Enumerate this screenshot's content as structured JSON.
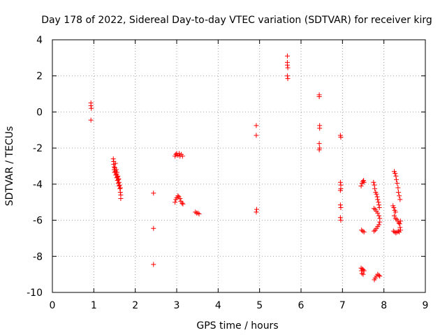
{
  "chart_data": {
    "type": "scatter",
    "title": "Day 178 of 2022, Sidereal Day-to-day VTEC variation (SDTVAR) for receiver kirg",
    "xlabel": "GPS time / hours",
    "ylabel": "SDTVAR / TECUs",
    "xlim": [
      0,
      9
    ],
    "ylim": [
      -10,
      4
    ],
    "xticks": [
      0,
      1,
      2,
      3,
      4,
      5,
      6,
      7,
      8,
      9
    ],
    "yticks": [
      4,
      2,
      0,
      -2,
      -4,
      -6,
      -8,
      -10
    ],
    "xtick_labels": [
      "0",
      "1",
      "2",
      "3",
      "4",
      "5",
      "6",
      "7",
      "8",
      "9"
    ],
    "ytick_labels": [
      "4",
      "2",
      "0",
      "-2",
      "-4",
      "-6",
      "-8",
      "-10"
    ],
    "grid": true,
    "marker": "+",
    "color": "#ff0000",
    "series": [
      {
        "name": "SDTVAR",
        "points": [
          [
            0.93,
            0.5
          ],
          [
            0.93,
            0.35
          ],
          [
            0.94,
            0.2
          ],
          [
            0.93,
            -0.45
          ],
          [
            1.47,
            -2.6
          ],
          [
            1.48,
            -2.75
          ],
          [
            1.48,
            -2.9
          ],
          [
            1.49,
            -3.05
          ],
          [
            1.49,
            -3.2
          ],
          [
            1.5,
            -3.35
          ],
          [
            1.51,
            -3.1
          ],
          [
            1.52,
            -2.85
          ],
          [
            1.52,
            -3.3
          ],
          [
            1.53,
            -3.5
          ],
          [
            1.54,
            -3.2
          ],
          [
            1.55,
            -3.45
          ],
          [
            1.55,
            -3.65
          ],
          [
            1.56,
            -3.35
          ],
          [
            1.57,
            -3.6
          ],
          [
            1.57,
            -3.8
          ],
          [
            1.58,
            -3.55
          ],
          [
            1.59,
            -3.75
          ],
          [
            1.59,
            -3.95
          ],
          [
            1.6,
            -3.7
          ],
          [
            1.61,
            -3.9
          ],
          [
            1.61,
            -4.1
          ],
          [
            1.62,
            -4.05
          ],
          [
            1.63,
            -4.25
          ],
          [
            1.64,
            -4.45
          ],
          [
            1.64,
            -4.2
          ],
          [
            1.65,
            -4.6
          ],
          [
            1.65,
            -4.8
          ],
          [
            2.44,
            -4.5
          ],
          [
            2.44,
            -6.45
          ],
          [
            2.44,
            -8.45
          ],
          [
            2.96,
            -2.45
          ],
          [
            2.98,
            -2.35
          ],
          [
            3.0,
            -2.3
          ],
          [
            3.03,
            -2.4
          ],
          [
            3.06,
            -2.3
          ],
          [
            3.08,
            -2.45
          ],
          [
            3.11,
            -2.35
          ],
          [
            3.14,
            -2.45
          ],
          [
            2.96,
            -5.0
          ],
          [
            2.98,
            -4.85
          ],
          [
            3.0,
            -4.75
          ],
          [
            3.03,
            -4.65
          ],
          [
            3.05,
            -4.7
          ],
          [
            3.08,
            -4.8
          ],
          [
            3.1,
            -4.95
          ],
          [
            3.13,
            -5.05
          ],
          [
            3.15,
            -5.1
          ],
          [
            3.45,
            -5.55
          ],
          [
            3.48,
            -5.6
          ],
          [
            3.51,
            -5.6
          ],
          [
            3.54,
            -5.65
          ],
          [
            4.92,
            -0.75
          ],
          [
            4.92,
            -1.3
          ],
          [
            4.93,
            -5.4
          ],
          [
            4.92,
            -5.55
          ],
          [
            5.67,
            3.1
          ],
          [
            5.67,
            2.75
          ],
          [
            5.67,
            2.6
          ],
          [
            5.68,
            2.45
          ],
          [
            5.67,
            2.0
          ],
          [
            5.68,
            1.85
          ],
          [
            6.44,
            0.95
          ],
          [
            6.44,
            0.85
          ],
          [
            6.45,
            -0.75
          ],
          [
            6.45,
            -0.9
          ],
          [
            6.44,
            -1.75
          ],
          [
            6.45,
            -2.0
          ],
          [
            6.44,
            -2.1
          ],
          [
            6.95,
            -1.3
          ],
          [
            6.96,
            -1.4
          ],
          [
            6.95,
            -3.9
          ],
          [
            6.96,
            -4.05
          ],
          [
            6.96,
            -4.25
          ],
          [
            6.95,
            -4.35
          ],
          [
            6.95,
            -5.15
          ],
          [
            6.96,
            -5.3
          ],
          [
            6.95,
            -5.85
          ],
          [
            6.96,
            -6.0
          ],
          [
            7.45,
            -4.1
          ],
          [
            7.47,
            -3.95
          ],
          [
            7.49,
            -3.85
          ],
          [
            7.51,
            -3.8
          ],
          [
            7.52,
            -3.9
          ],
          [
            7.46,
            -6.55
          ],
          [
            7.49,
            -6.6
          ],
          [
            7.52,
            -6.65
          ],
          [
            7.45,
            -8.65
          ],
          [
            7.46,
            -8.8
          ],
          [
            7.48,
            -8.7
          ],
          [
            7.47,
            -8.95
          ],
          [
            7.5,
            -8.75
          ],
          [
            7.5,
            -9.0
          ],
          [
            7.52,
            -8.8
          ],
          [
            7.75,
            -3.9
          ],
          [
            7.77,
            -4.05
          ],
          [
            7.78,
            -4.25
          ],
          [
            7.8,
            -4.45
          ],
          [
            7.82,
            -4.55
          ],
          [
            7.84,
            -4.7
          ],
          [
            7.85,
            -4.85
          ],
          [
            7.87,
            -5.0
          ],
          [
            7.88,
            -5.15
          ],
          [
            7.89,
            -5.3
          ],
          [
            7.76,
            -5.35
          ],
          [
            7.79,
            -5.4
          ],
          [
            7.82,
            -5.5
          ],
          [
            7.85,
            -5.6
          ],
          [
            7.88,
            -5.75
          ],
          [
            7.9,
            -5.9
          ],
          [
            7.9,
            -6.1
          ],
          [
            7.88,
            -6.25
          ],
          [
            7.85,
            -6.35
          ],
          [
            7.82,
            -6.45
          ],
          [
            7.79,
            -6.55
          ],
          [
            7.76,
            -6.6
          ],
          [
            7.77,
            -9.3
          ],
          [
            7.79,
            -9.2
          ],
          [
            7.82,
            -9.1
          ],
          [
            7.85,
            -9.0
          ],
          [
            7.88,
            -9.05
          ],
          [
            7.9,
            -9.1
          ],
          [
            8.25,
            -3.3
          ],
          [
            8.27,
            -3.4
          ],
          [
            8.29,
            -3.55
          ],
          [
            8.3,
            -3.75
          ],
          [
            8.32,
            -3.95
          ],
          [
            8.34,
            -4.2
          ],
          [
            8.35,
            -4.45
          ],
          [
            8.37,
            -4.65
          ],
          [
            8.39,
            -4.85
          ],
          [
            8.22,
            -5.2
          ],
          [
            8.24,
            -5.3
          ],
          [
            8.26,
            -5.45
          ],
          [
            8.28,
            -5.55
          ],
          [
            8.25,
            -5.75
          ],
          [
            8.28,
            -5.9
          ],
          [
            8.31,
            -5.95
          ],
          [
            8.34,
            -6.05
          ],
          [
            8.36,
            -6.15
          ],
          [
            8.38,
            -6.2
          ],
          [
            8.4,
            -6.05
          ],
          [
            8.39,
            -6.4
          ],
          [
            8.23,
            -6.6
          ],
          [
            8.26,
            -6.65
          ],
          [
            8.29,
            -6.7
          ],
          [
            8.32,
            -6.65
          ],
          [
            8.35,
            -6.6
          ],
          [
            8.37,
            -6.65
          ],
          [
            8.4,
            -6.55
          ]
        ]
      }
    ]
  }
}
